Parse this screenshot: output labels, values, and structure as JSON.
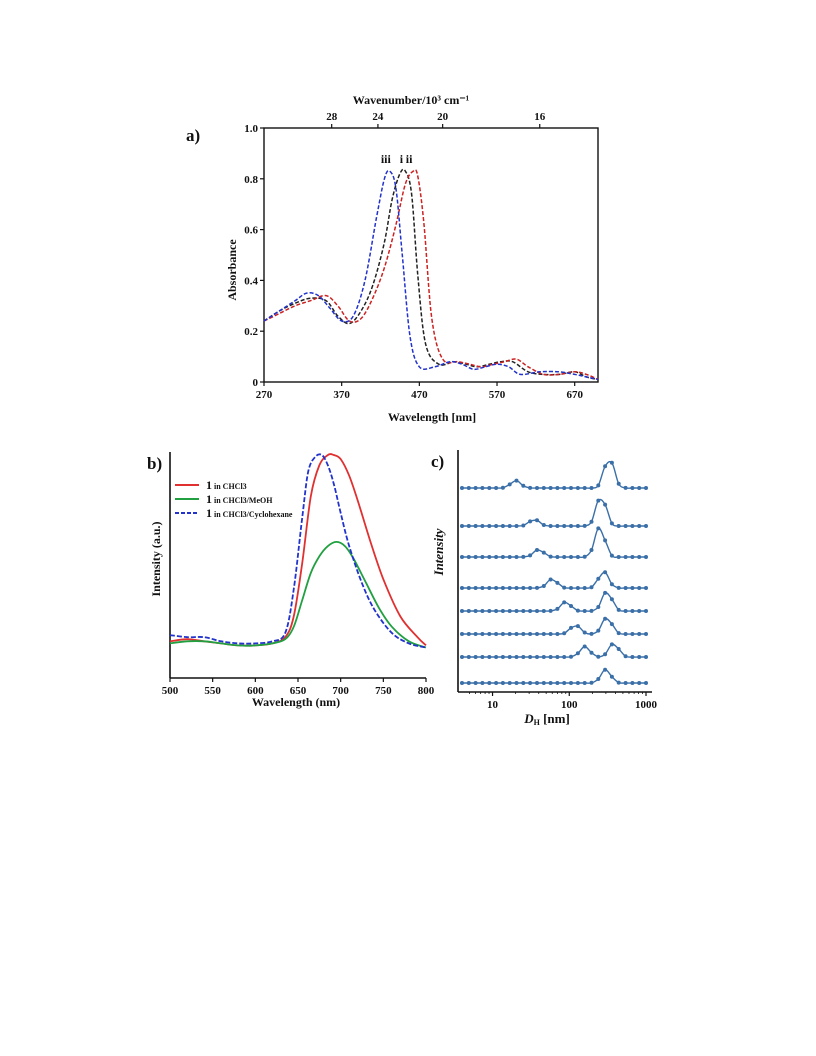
{
  "chart_data": [
    {
      "panel": "a)",
      "type": "line",
      "xlabel": "Wavelength [nm]",
      "ylabel": "Absorbance",
      "top_axis_label": "Wavenumber/10³ cm⁻¹",
      "xlim": [
        270,
        700
      ],
      "ylim": [
        0,
        1.0
      ],
      "x_ticks": [
        "270",
        "370",
        "470",
        "570",
        "670"
      ],
      "y_ticks": [
        "0",
        "0.2",
        "0.4",
        "0.6",
        "0.8",
        "1.0"
      ],
      "top_ticks": [
        "28",
        "24",
        "20",
        "16"
      ],
      "top_tick_values": [
        28,
        24,
        20,
        16
      ],
      "series": [
        {
          "name": "i",
          "color": "#222222",
          "style": "dashed",
          "x": [
            270,
            290,
            310,
            330,
            350,
            365,
            380,
            395,
            410,
            425,
            435,
            445,
            452,
            460,
            468,
            478,
            495,
            515,
            530,
            545,
            560,
            575,
            590,
            610,
            630,
            650,
            670,
            685,
            700
          ],
          "y": [
            0.24,
            0.28,
            0.31,
            0.33,
            0.32,
            0.26,
            0.23,
            0.28,
            0.38,
            0.55,
            0.72,
            0.82,
            0.83,
            0.74,
            0.42,
            0.15,
            0.07,
            0.08,
            0.07,
            0.06,
            0.07,
            0.08,
            0.08,
            0.04,
            0.03,
            0.03,
            0.04,
            0.02,
            0.01
          ]
        },
        {
          "name": "ii",
          "color": "#cc2222",
          "style": "dashed",
          "x": [
            270,
            290,
            310,
            330,
            350,
            365,
            380,
            395,
            410,
            425,
            440,
            452,
            462,
            468,
            476,
            486,
            500,
            520,
            535,
            550,
            565,
            580,
            595,
            610,
            630,
            650,
            670,
            685,
            700
          ],
          "y": [
            0.24,
            0.27,
            0.3,
            0.32,
            0.34,
            0.3,
            0.24,
            0.25,
            0.33,
            0.45,
            0.62,
            0.78,
            0.83,
            0.81,
            0.62,
            0.25,
            0.09,
            0.08,
            0.07,
            0.06,
            0.07,
            0.08,
            0.09,
            0.06,
            0.03,
            0.03,
            0.04,
            0.03,
            0.01
          ]
        },
        {
          "name": "iii",
          "color": "#2233cc",
          "style": "dashed",
          "x": [
            270,
            290,
            310,
            325,
            340,
            355,
            370,
            385,
            400,
            415,
            425,
            432,
            440,
            448,
            458,
            470,
            490,
            510,
            525,
            540,
            555,
            570,
            585,
            600,
            625,
            650,
            670,
            685,
            700
          ],
          "y": [
            0.24,
            0.28,
            0.32,
            0.35,
            0.34,
            0.29,
            0.24,
            0.26,
            0.4,
            0.65,
            0.8,
            0.83,
            0.76,
            0.5,
            0.18,
            0.06,
            0.06,
            0.08,
            0.07,
            0.05,
            0.06,
            0.07,
            0.06,
            0.03,
            0.04,
            0.04,
            0.03,
            0.02,
            0.01
          ]
        }
      ],
      "peak_labels": [
        "iii",
        "i",
        "ii"
      ]
    },
    {
      "panel": "b)",
      "type": "line",
      "xlabel": "Wavelength (nm)",
      "ylabel": "Intensity (a.u.)",
      "xlim": [
        500,
        800
      ],
      "ylim": [
        0,
        1.0
      ],
      "x_ticks": [
        "500",
        "550",
        "600",
        "650",
        "700",
        "750",
        "800"
      ],
      "legend_position": "top-left",
      "series": [
        {
          "name_num": "1",
          "name": "in CHCl3",
          "color": "#e03030",
          "style": "solid",
          "x": [
            500,
            520,
            540,
            560,
            580,
            600,
            620,
            635,
            645,
            655,
            665,
            675,
            685,
            692,
            700,
            710,
            720,
            735,
            750,
            770,
            790,
            800
          ],
          "y": [
            0.1,
            0.11,
            0.1,
            0.09,
            0.08,
            0.08,
            0.09,
            0.12,
            0.22,
            0.48,
            0.8,
            0.95,
            1.0,
            1.0,
            0.98,
            0.9,
            0.78,
            0.58,
            0.4,
            0.22,
            0.12,
            0.08
          ]
        },
        {
          "name_num": "1",
          "name": "in CHCl3/MeOH",
          "color": "#20a040",
          "style": "solid",
          "x": [
            500,
            520,
            540,
            560,
            580,
            600,
            620,
            635,
            645,
            655,
            665,
            675,
            685,
            695,
            705,
            715,
            730,
            745,
            760,
            780,
            800
          ],
          "y": [
            0.09,
            0.1,
            0.1,
            0.09,
            0.08,
            0.08,
            0.09,
            0.11,
            0.17,
            0.3,
            0.43,
            0.51,
            0.56,
            0.58,
            0.56,
            0.5,
            0.38,
            0.26,
            0.17,
            0.1,
            0.07
          ]
        },
        {
          "name_num": "1",
          "name": "in CHCl3/Cyclohexane",
          "color": "#2233cc",
          "style": "dashed",
          "x": [
            500,
            520,
            540,
            560,
            580,
            600,
            620,
            635,
            645,
            655,
            662,
            670,
            678,
            685,
            692,
            700,
            710,
            725,
            740,
            760,
            780,
            800
          ],
          "y": [
            0.13,
            0.12,
            0.12,
            0.1,
            0.09,
            0.09,
            0.1,
            0.14,
            0.35,
            0.7,
            0.92,
            0.99,
            1.0,
            0.95,
            0.86,
            0.72,
            0.56,
            0.38,
            0.25,
            0.14,
            0.09,
            0.07
          ]
        }
      ]
    },
    {
      "panel": "c)",
      "type": "line",
      "xscale": "log",
      "xlabel": "DH [nm]",
      "xlabel_main": "D",
      "xlabel_sub": "H",
      "xlabel_unit": " [nm]",
      "ylabel": "Intensity",
      "xlim": [
        4,
        1000
      ],
      "x_ticks": [
        "10",
        "100",
        "1000"
      ],
      "x_tick_values": [
        10,
        100,
        1000
      ],
      "color": "#3a6fa8",
      "stacked_traces": [
        {
          "peaks": [
            [
              20,
              0.25
            ],
            [
              330,
              1.0
            ]
          ]
        },
        {
          "peaks": [
            [
              35,
              0.22
            ],
            [
              260,
              1.0
            ]
          ]
        },
        {
          "peaks": [
            [
              40,
              0.25
            ],
            [
              250,
              1.0
            ]
          ]
        },
        {
          "peaks": [
            [
              60,
              0.3
            ],
            [
              280,
              0.55
            ]
          ]
        },
        {
          "peaks": [
            [
              90,
              0.3
            ],
            [
              310,
              0.65
            ]
          ]
        },
        {
          "peaks": [
            [
              120,
              0.3
            ],
            [
              310,
              0.55
            ]
          ]
        },
        {
          "peaks": [
            [
              160,
              0.35
            ],
            [
              380,
              0.45
            ]
          ]
        },
        {
          "peaks": [
            [
              300,
              0.45
            ]
          ]
        }
      ]
    }
  ]
}
